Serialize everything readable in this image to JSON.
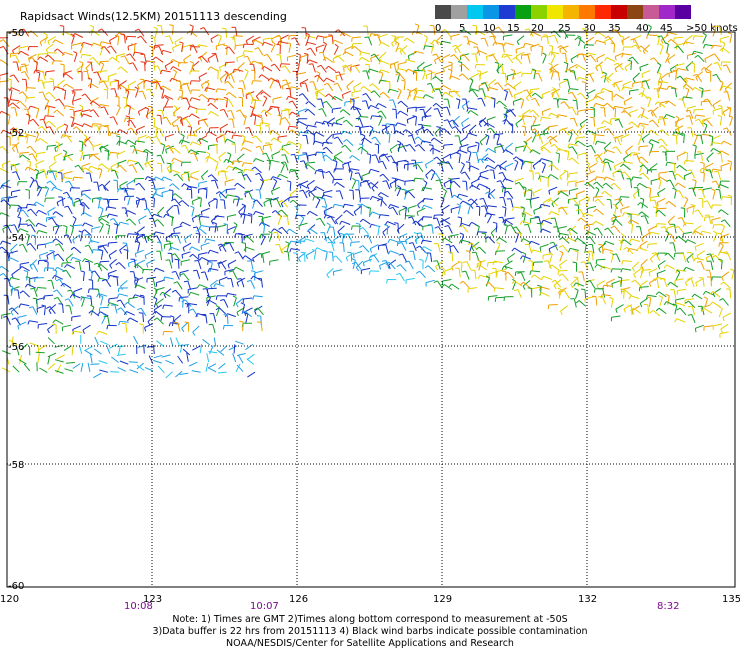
{
  "title": "Rapidsact Winds(12.5KM) 20151113 descending",
  "scale": {
    "labels": [
      "0",
      "5",
      "10",
      "15",
      "20",
      "25",
      "30",
      "35",
      "40",
      "45",
      ">50 knots"
    ],
    "colors": [
      "#4a4a4a",
      "#a0a0a0",
      "#00c8f0",
      "#0a96e6",
      "#1e3cd2",
      "#0aa014",
      "#8cd200",
      "#f0e600",
      "#f5b400",
      "#ff7800",
      "#ff2800",
      "#c80000",
      "#8c4614",
      "#c85a96",
      "#a028c8",
      "#5a00a0"
    ]
  },
  "axes": {
    "lat_labels": [
      "-50",
      "-52",
      "-54",
      "-56",
      "-58",
      "-60"
    ],
    "lon_labels": [
      "120",
      "123",
      "126",
      "129",
      "132",
      "135"
    ]
  },
  "times": [
    "10:08",
    "10:07",
    "8:32"
  ],
  "notes": {
    "line1": "Note: 1) Times are GMT 2)Times along bottom correspond to measurement at -50S",
    "line2": "3)Data buffer is 22 hrs from 20151113 4) Black wind barbs indicate possible contamination",
    "line3": "NOAA/NESDIS/Center for Satellite Applications and Research"
  },
  "palette": {
    "blue": "#1432c8",
    "lightblue": "#1ea0e6",
    "cyan": "#28c8f0",
    "green": "#14a028",
    "yellow": "#e6d200",
    "orange": "#f0a000",
    "red": "#e63214",
    "purple": "#7a0a8c"
  }
}
